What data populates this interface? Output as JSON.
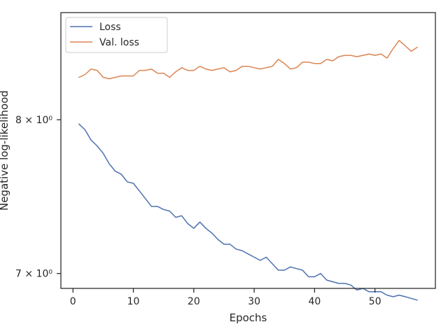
{
  "chart_data": {
    "type": "line",
    "title": "",
    "xlabel": "Epochs",
    "ylabel": "Negative log-likelihood",
    "xlim": [
      -2,
      60
    ],
    "ylim": [
      6.91,
      8.78
    ],
    "y_scale": "log",
    "grid": false,
    "legend_position": "top-left",
    "x_ticks": [
      0,
      10,
      20,
      30,
      40,
      50
    ],
    "x_tick_labels": [
      "0",
      "10",
      "20",
      "30",
      "40",
      "50"
    ],
    "y_ticks": [
      7,
      8
    ],
    "y_tick_labels": [
      "7 × 10⁰",
      "8 × 10⁰"
    ],
    "x": [
      1,
      2,
      3,
      4,
      5,
      6,
      7,
      8,
      9,
      10,
      11,
      12,
      13,
      14,
      15,
      16,
      17,
      18,
      19,
      20,
      21,
      22,
      23,
      24,
      25,
      26,
      27,
      28,
      29,
      30,
      31,
      32,
      33,
      34,
      35,
      36,
      37,
      38,
      39,
      40,
      41,
      42,
      43,
      44,
      45,
      46,
      47,
      48,
      49,
      50,
      51,
      52,
      53,
      54,
      55,
      56,
      57
    ],
    "series": [
      {
        "name": "Loss",
        "color": "#4c72b0",
        "values": [
          7.97,
          7.93,
          7.86,
          7.82,
          7.77,
          7.7,
          7.65,
          7.63,
          7.58,
          7.57,
          7.52,
          7.47,
          7.42,
          7.42,
          7.4,
          7.39,
          7.35,
          7.36,
          7.31,
          7.28,
          7.32,
          7.28,
          7.25,
          7.21,
          7.18,
          7.18,
          7.15,
          7.14,
          7.12,
          7.1,
          7.08,
          7.1,
          7.06,
          7.02,
          7.02,
          7.04,
          7.03,
          7.02,
          6.98,
          6.98,
          7.0,
          6.96,
          6.95,
          6.94,
          6.94,
          6.93,
          6.9,
          6.91,
          6.89,
          6.89,
          6.89,
          6.87,
          6.86,
          6.87,
          6.86,
          6.85,
          6.84
        ]
      },
      {
        "name": "Val. loss",
        "color": "#dd8452",
        "values": [
          8.3,
          8.32,
          8.36,
          8.35,
          8.3,
          8.29,
          8.3,
          8.31,
          8.31,
          8.31,
          8.35,
          8.35,
          8.36,
          8.33,
          8.33,
          8.3,
          8.34,
          8.37,
          8.35,
          8.35,
          8.38,
          8.36,
          8.35,
          8.36,
          8.37,
          8.34,
          8.35,
          8.38,
          8.38,
          8.37,
          8.36,
          8.37,
          8.38,
          8.43,
          8.4,
          8.36,
          8.37,
          8.41,
          8.41,
          8.4,
          8.4,
          8.43,
          8.42,
          8.45,
          8.46,
          8.46,
          8.45,
          8.46,
          8.47,
          8.46,
          8.47,
          8.44,
          8.51,
          8.57,
          8.53,
          8.49,
          8.52
        ]
      }
    ]
  }
}
